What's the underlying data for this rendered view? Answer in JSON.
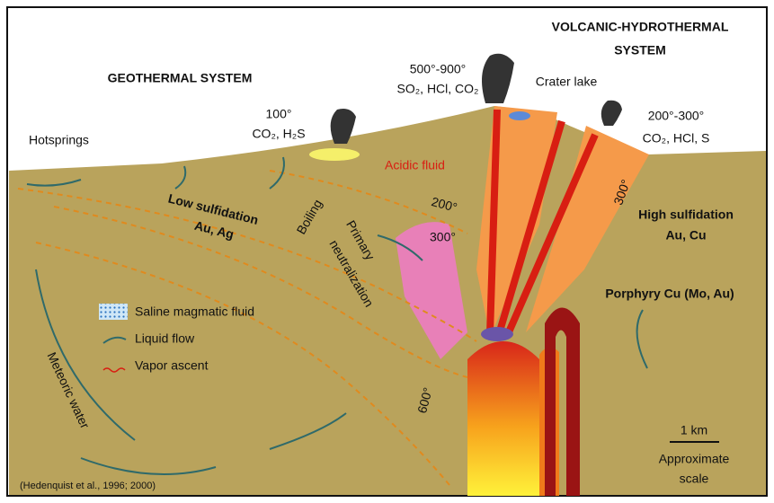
{
  "titles": {
    "volcanic": [
      "VOLCANIC-HYDROTHERMAL",
      "SYSTEM"
    ],
    "geothermal": "GEOTHERMAL SYSTEM"
  },
  "labels": {
    "summit_temp": "500°-900°",
    "summit_gas": "SO₂, HCl, CO₂",
    "crater_lake": "Crater lake",
    "vent_temp": "100°",
    "vent_gas": "CO₂, H₂S",
    "flank_temp": "200°-300°",
    "flank_gas": "CO₂, HCl, S",
    "hotsprings": "Hotsprings",
    "acidic_fluid": "Acidic fluid",
    "iso_200": "200°",
    "iso_300": "300°",
    "iso_300_right": "300°",
    "iso_600": "600°",
    "low_sulfidation": "Low sulfidation",
    "low_metals": "Au, Ag",
    "boiling": "Boiling",
    "primary": "Primary",
    "neutralization": "neutralization",
    "high_sulfidation": "High sulfidation",
    "high_metals": "Au, Cu",
    "porphyry": "Porphyry Cu (Mo, Au)",
    "meteoric": "Meteoric water",
    "scale_length": "1 km",
    "scale_text": [
      "Approximate",
      "scale"
    ],
    "citation": "(Hedenquist et al., 1996; 2000)"
  },
  "legend": [
    "Saline magmatic fluid",
    "Liquid flow",
    "Vapor ascent"
  ]
}
